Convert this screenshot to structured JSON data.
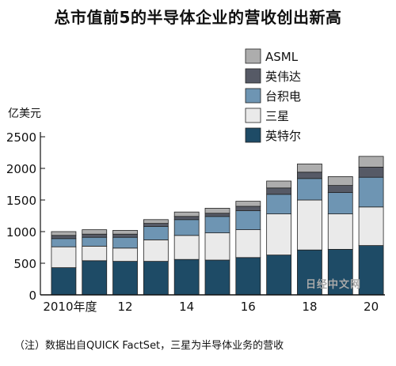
{
  "page": {
    "title": "总市值前5的半导体企业的营收创出新高",
    "note": "（注）数据出自QUICK FactSet，三星为半导体业务的营收",
    "watermark": "日经中文网"
  },
  "chart_data": {
    "type": "bar",
    "stacked": true,
    "ylabel": "亿美元",
    "ylim": [
      0,
      2500
    ],
    "yticks": [
      0,
      500,
      1000,
      1500,
      2000,
      2500
    ],
    "categories": [
      "2010",
      "2011",
      "2012",
      "2013",
      "2014",
      "2015",
      "2016",
      "2017",
      "2018",
      "2019",
      "2020"
    ],
    "xtick_labels": [
      "2010年度",
      "",
      "12",
      "",
      "14",
      "",
      "16",
      "",
      "18",
      "",
      "20"
    ],
    "legend_position": "top-right",
    "legend_order": [
      "ASML",
      "英伟达",
      "台积电",
      "三星",
      "英特尔"
    ],
    "series": [
      {
        "name": "英特尔",
        "color": "#1e4b66",
        "values": [
          430,
          540,
          530,
          530,
          560,
          550,
          590,
          630,
          710,
          720,
          780
        ]
      },
      {
        "name": "三星",
        "color": "#eaeaea",
        "values": [
          330,
          230,
          210,
          340,
          380,
          430,
          440,
          650,
          790,
          560,
          610
        ]
      },
      {
        "name": "台积电",
        "color": "#6e95b3",
        "values": [
          130,
          140,
          170,
          210,
          250,
          260,
          300,
          310,
          340,
          340,
          470
        ]
      },
      {
        "name": "英伟达",
        "color": "#565a66",
        "values": [
          50,
          50,
          50,
          50,
          50,
          50,
          70,
          100,
          100,
          110,
          160
        ]
      },
      {
        "name": "ASML",
        "color": "#adadad",
        "values": [
          60,
          70,
          60,
          60,
          70,
          80,
          80,
          110,
          130,
          140,
          170
        ]
      }
    ],
    "grid": false
  }
}
